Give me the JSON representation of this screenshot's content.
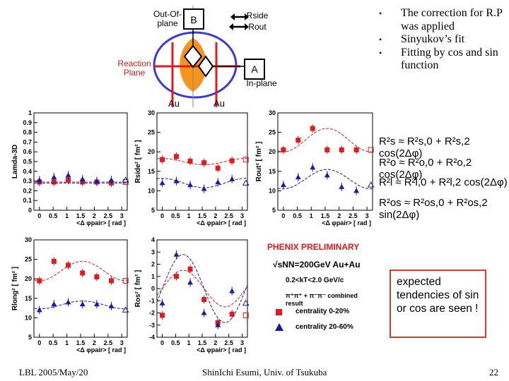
{
  "diagram": {
    "out_of_plane_label": "Out-Of-\nplane",
    "box_b": "B",
    "box_a": "A",
    "rside_label": "Rside",
    "rout_label": "Rout",
    "reaction_plane_label": "Reaction\nPlane",
    "in_plane_label": "In-plane",
    "au_left": "Au",
    "au_right": "Au"
  },
  "bullets": [
    "The correction for R.P was applied",
    "Sinyukov’s fit",
    "Fitting by cos and sin function"
  ],
  "bullet_symbol": "•",
  "formulas": {
    "rs": "R²s ≈ R²s,0 + R²s,2 cos(2Δφ)",
    "ro": "R²o ≈ R²o,0 + R²o,2 cos(2Δφ)",
    "rl": "R²l ≈ R²l,0 + R²l,2 cos(2Δφ)",
    "ros": "R²os ≈ R²os,0 + R²os,2 sin(2Δφ)"
  },
  "legend": {
    "preliminary": "PHENIX PRELIMINARY",
    "energy": "√sNN=200GeV Au+Au",
    "kt": "0.2<kT<2.0 GeV/c",
    "pair": "π⁺π⁺ + π⁻π⁻ combined result",
    "central": "centrality 0-20%",
    "peripheral": "centrality 20-60%"
  },
  "note": "expected tendencies of sin or cos are seen !",
  "footer": {
    "left": "LBL 2005/May/20",
    "center": "ShinIchi Esumi, Univ. of Tsukuba",
    "page": "22"
  },
  "colors": {
    "central": "#e31a1c",
    "peripheral": "#1a1aa8",
    "accent": "#e23a2a",
    "ellipse": "#3b3bd6",
    "almond": "#f7941d"
  },
  "chart_data": [
    {
      "type": "scatter",
      "title": "",
      "ylabel": "Lamda-3D",
      "xlabel": "<Δ φpair> [ rad ]",
      "ylim": [
        0,
        1.0
      ],
      "xlim": [
        -0.2,
        3.2
      ],
      "yticks": [
        "0",
        "0.1",
        "0.2",
        "0.3",
        "0.4",
        "0.5",
        "0.6",
        "0.7",
        "0.8",
        "0.9",
        "1"
      ],
      "xticks": [
        "0",
        "0.5",
        "1",
        "1.5",
        "2",
        "2.5",
        "3"
      ],
      "x": [
        0,
        0.53,
        1.05,
        1.57,
        2.09,
        2.62
      ],
      "series": [
        {
          "name": "centrality 0-20%",
          "values": [
            0.29,
            0.29,
            0.31,
            0.29,
            0.29,
            0.28
          ],
          "fit": [
            0.29,
            0
          ]
        },
        {
          "name": "centrality 20-60%",
          "values": [
            0.31,
            0.34,
            0.36,
            0.32,
            0.3,
            0.31
          ],
          "fit": [
            0.28,
            0
          ]
        }
      ]
    },
    {
      "type": "scatter",
      "title": "",
      "ylabel": "Rside² [ fm² ]",
      "xlabel": "<Δ φpair> [ rad ]",
      "ylim": [
        5,
        30
      ],
      "xlim": [
        -0.2,
        3.2
      ],
      "yticks": [
        "5",
        "10",
        "15",
        "20",
        "25",
        "30"
      ],
      "xticks": [
        "0",
        "0.5",
        "1",
        "1.5",
        "2",
        "2.5",
        "3"
      ],
      "x": [
        0,
        0.53,
        1.05,
        1.57,
        2.09,
        2.62
      ],
      "series": [
        {
          "name": "centrality 0-20%",
          "values": [
            18.0,
            18.8,
            17.6,
            17.2,
            15.8,
            17.7
          ],
          "fit": [
            17.5,
            0.8,
            "cos"
          ]
        },
        {
          "name": "centrality 20-60%",
          "values": [
            12.0,
            12.5,
            11.5,
            10.5,
            12.2,
            13.0
          ],
          "fit": [
            12.0,
            1.2,
            "cos"
          ]
        }
      ]
    },
    {
      "type": "scatter",
      "title": "",
      "ylabel": "Rout² [ fm² ]",
      "xlabel": "<Δ φpair> [ rad ]",
      "ylim": [
        5,
        30
      ],
      "xlim": [
        -0.2,
        3.2
      ],
      "yticks": [
        "5",
        "10",
        "15",
        "20",
        "25",
        "30"
      ],
      "xticks": [
        "0",
        "0.5",
        "1",
        "1.5",
        "2",
        "2.5",
        "3"
      ],
      "x": [
        0,
        0.53,
        1.05,
        1.57,
        2.09,
        2.62
      ],
      "series": [
        {
          "name": "centrality 0-20%",
          "values": [
            20.5,
            23.0,
            26.0,
            20.5,
            20.5,
            20.5
          ],
          "fit": [
            23.0,
            -3.0,
            "cos"
          ]
        },
        {
          "name": "centrality 20-60%",
          "values": [
            11.5,
            13.5,
            16.0,
            14.0,
            11.0,
            10.0
          ],
          "fit": [
            13.0,
            -2.5,
            "cos"
          ]
        }
      ]
    },
    {
      "type": "scatter",
      "title": "",
      "ylabel": "Rlong² [ fm² ]",
      "xlabel": "<Δ φpair> [ rad ]",
      "ylim": [
        5,
        30
      ],
      "xlim": [
        -0.2,
        3.2
      ],
      "yticks": [
        "5",
        "10",
        "15",
        "20",
        "25",
        "30"
      ],
      "xticks": [
        "0",
        "0.5",
        "1",
        "1.5",
        "2",
        "2.5",
        "3"
      ],
      "x": [
        0,
        0.53,
        1.05,
        1.57,
        2.09,
        2.62
      ],
      "series": [
        {
          "name": "centrality 0-20%",
          "values": [
            19.5,
            24.5,
            23.5,
            21.5,
            20.5,
            19.5
          ],
          "fit": [
            22.0,
            -2.5,
            "cos"
          ]
        },
        {
          "name": "centrality 20-60%",
          "values": [
            12.0,
            13.5,
            14.0,
            13.5,
            13.5,
            13.0
          ],
          "fit": [
            13.3,
            -1.0,
            "cos"
          ]
        }
      ]
    },
    {
      "type": "scatter",
      "title": "",
      "ylabel": "Ros² [ fm² ]",
      "xlabel": "<Δ φpair> [ rad ]",
      "ylim": [
        -4,
        4
      ],
      "xlim": [
        -0.2,
        3.2
      ],
      "yticks": [
        "-4",
        "-3",
        "-2",
        "-1",
        "0",
        "1",
        "2",
        "3",
        "4"
      ],
      "xticks": [
        "0",
        "0.5",
        "1",
        "1.5",
        "2",
        "2.5",
        "3"
      ],
      "x": [
        0,
        0.53,
        1.05,
        1.57,
        2.09,
        2.62
      ],
      "series": [
        {
          "name": "centrality 0-20%",
          "values": [
            -2.2,
            1.0,
            1.6,
            -0.9,
            -2.8,
            -2.1
          ],
          "fit": [
            0,
            1.5,
            "sin"
          ]
        },
        {
          "name": "centrality 20-60%",
          "values": [
            -1.2,
            2.8,
            0.5,
            -2.0,
            -3.0,
            -0.2
          ],
          "fit": [
            0,
            2.8,
            "sin"
          ]
        }
      ]
    }
  ]
}
